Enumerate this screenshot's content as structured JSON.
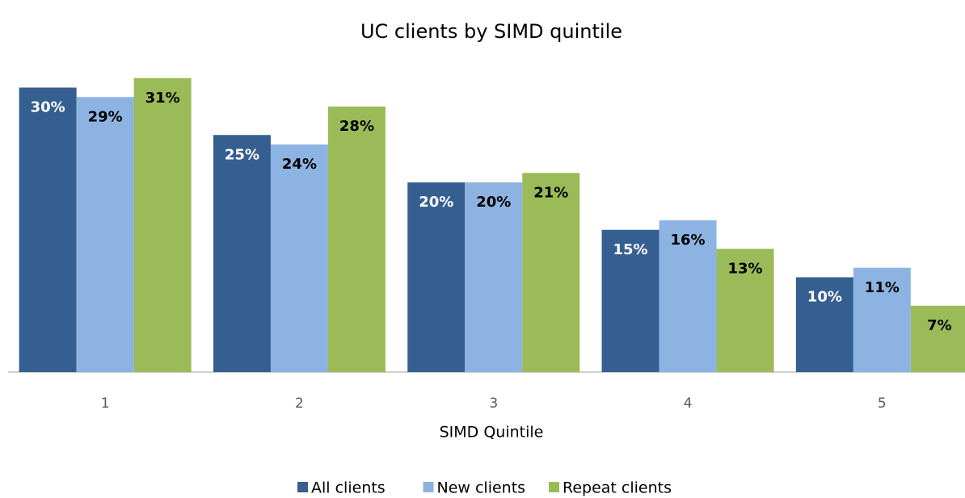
{
  "chart_data": {
    "type": "bar",
    "title": "UC clients by SIMD quintile",
    "x_label": "SIMD Quintile",
    "categories": [
      "1",
      "2",
      "3",
      "4",
      "5"
    ],
    "series": [
      {
        "name": "All clients",
        "color": "#365f91",
        "values": [
          30,
          25,
          20,
          15,
          10
        ],
        "value_labels": [
          "30%",
          "25%",
          "20%",
          "15%",
          "10%"
        ]
      },
      {
        "name": "New clients",
        "color": "#8db3e2",
        "values": [
          29,
          24,
          20,
          16,
          11
        ],
        "value_labels": [
          "29%",
          "24%",
          "20%",
          "16%",
          "11%"
        ]
      },
      {
        "name": "Repeat clients",
        "color": "#9bbb59",
        "values": [
          31,
          28,
          21,
          13,
          7
        ],
        "value_labels": [
          "31%",
          "28%",
          "21%",
          "13%",
          "7%"
        ]
      }
    ],
    "legend": "bottom"
  }
}
